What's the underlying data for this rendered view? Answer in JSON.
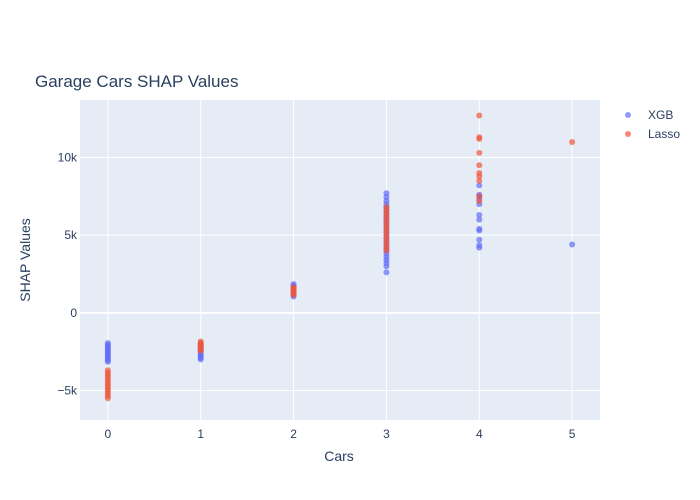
{
  "chart_data": {
    "type": "scatter",
    "title": "Garage Cars SHAP Values",
    "xlabel": "Cars",
    "ylabel": "SHAP Values",
    "xlim": [
      -0.3,
      5.3
    ],
    "ylim": [
      -6900,
      13700
    ],
    "x_ticks": [
      0,
      1,
      2,
      3,
      4,
      5
    ],
    "x_tick_labels": [
      "0",
      "1",
      "2",
      "3",
      "4",
      "5"
    ],
    "y_ticks": [
      -5000,
      0,
      5000,
      10000
    ],
    "y_tick_labels": [
      "−5k",
      "0",
      "5k",
      "10k"
    ],
    "grid": true,
    "legend_position": "top-right",
    "series": [
      {
        "name": "XGB",
        "color": "#636efa",
        "points": [
          [
            0,
            -1950
          ],
          [
            0,
            -2050
          ],
          [
            0,
            -2150
          ],
          [
            0,
            -2250
          ],
          [
            0,
            -2350
          ],
          [
            0,
            -2450
          ],
          [
            0,
            -2550
          ],
          [
            0,
            -2650
          ],
          [
            0,
            -2750
          ],
          [
            0,
            -2850
          ],
          [
            0,
            -2950
          ],
          [
            0,
            -3050
          ],
          [
            0,
            -3150
          ],
          [
            1,
            -2000
          ],
          [
            1,
            -2100
          ],
          [
            1,
            -2200
          ],
          [
            1,
            -2300
          ],
          [
            1,
            -2400
          ],
          [
            1,
            -2500
          ],
          [
            1,
            -2600
          ],
          [
            1,
            -2700
          ],
          [
            1,
            -2800
          ],
          [
            1,
            -2900
          ],
          [
            1,
            -3000
          ],
          [
            2,
            1050
          ],
          [
            2,
            1150
          ],
          [
            2,
            1250
          ],
          [
            2,
            1350
          ],
          [
            2,
            1450
          ],
          [
            2,
            1550
          ],
          [
            2,
            1650
          ],
          [
            2,
            1750
          ],
          [
            2,
            1850
          ],
          [
            3,
            2600
          ],
          [
            3,
            3000
          ],
          [
            3,
            3200
          ],
          [
            3,
            3400
          ],
          [
            3,
            3600
          ],
          [
            3,
            3800
          ],
          [
            3,
            4000
          ],
          [
            3,
            4200
          ],
          [
            3,
            4400
          ],
          [
            3,
            4600
          ],
          [
            3,
            4800
          ],
          [
            3,
            5000
          ],
          [
            3,
            5200
          ],
          [
            3,
            5400
          ],
          [
            3,
            5600
          ],
          [
            3,
            5800
          ],
          [
            3,
            6000
          ],
          [
            3,
            6200
          ],
          [
            3,
            6400
          ],
          [
            3,
            6600
          ],
          [
            3,
            6800
          ],
          [
            3,
            7000
          ],
          [
            3,
            7200
          ],
          [
            3,
            7450
          ],
          [
            3,
            7700
          ],
          [
            4,
            4200
          ],
          [
            4,
            4350
          ],
          [
            4,
            4700
          ],
          [
            4,
            5300
          ],
          [
            4,
            5400
          ],
          [
            4,
            6000
          ],
          [
            4,
            6300
          ],
          [
            4,
            7000
          ],
          [
            4,
            7300
          ],
          [
            4,
            7500
          ],
          [
            4,
            7600
          ],
          [
            4,
            8200
          ],
          [
            5,
            4400
          ]
        ]
      },
      {
        "name": "Lasso",
        "color": "#ef553b",
        "points": [
          [
            0,
            -3700
          ],
          [
            0,
            -3850
          ],
          [
            0,
            -4000
          ],
          [
            0,
            -4150
          ],
          [
            0,
            -4300
          ],
          [
            0,
            -4450
          ],
          [
            0,
            -4600
          ],
          [
            0,
            -4750
          ],
          [
            0,
            -4900
          ],
          [
            0,
            -5050
          ],
          [
            0,
            -5200
          ],
          [
            0,
            -5350
          ],
          [
            0,
            -5500
          ],
          [
            1,
            -1850
          ],
          [
            1,
            -1950
          ],
          [
            1,
            -2050
          ],
          [
            1,
            -2150
          ],
          [
            1,
            -2250
          ],
          [
            1,
            -2350
          ],
          [
            1,
            -2450
          ],
          [
            2,
            1150
          ],
          [
            2,
            1250
          ],
          [
            2,
            1350
          ],
          [
            2,
            1450
          ],
          [
            2,
            1550
          ],
          [
            2,
            1650
          ],
          [
            3,
            4000
          ],
          [
            3,
            4200
          ],
          [
            3,
            4400
          ],
          [
            3,
            4600
          ],
          [
            3,
            4800
          ],
          [
            3,
            5000
          ],
          [
            3,
            5200
          ],
          [
            3,
            5400
          ],
          [
            3,
            5600
          ],
          [
            3,
            5800
          ],
          [
            3,
            6000
          ],
          [
            3,
            6200
          ],
          [
            3,
            6400
          ],
          [
            3,
            6600
          ],
          [
            3,
            6800
          ],
          [
            4,
            7200
          ],
          [
            4,
            7500
          ],
          [
            4,
            8500
          ],
          [
            4,
            8800
          ],
          [
            4,
            9000
          ],
          [
            4,
            9500
          ],
          [
            4,
            10300
          ],
          [
            4,
            11200
          ],
          [
            4,
            11300
          ],
          [
            4,
            12700
          ],
          [
            5,
            11000
          ]
        ]
      }
    ]
  }
}
